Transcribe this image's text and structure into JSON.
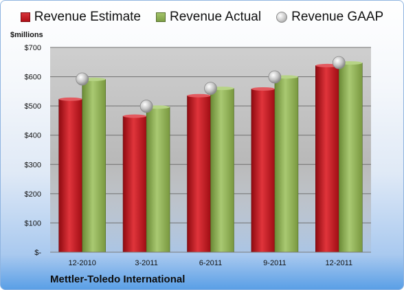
{
  "chart_data": {
    "type": "bar",
    "ylabel": "$millions",
    "company": "Mettler-Toledo International",
    "categories": [
      "12-2010",
      "3-2011",
      "6-2011",
      "9-2011",
      "12-2011"
    ],
    "series": [
      {
        "name": "Revenue Estimate",
        "kind": "bar",
        "color": "#c0141c",
        "values": [
          523,
          465,
          535,
          558,
          638
        ]
      },
      {
        "name": "Revenue Actual",
        "kind": "bar",
        "color": "#8db050",
        "values": [
          591,
          496,
          560,
          599,
          647
        ]
      },
      {
        "name": "Revenue GAAP",
        "kind": "marker",
        "color": "#bdbdbd",
        "values": [
          592,
          499,
          560,
          599,
          648
        ]
      }
    ],
    "ylim": [
      0,
      700
    ],
    "yticks": [
      0,
      100,
      200,
      300,
      400,
      500,
      600,
      700
    ],
    "ytick_labels": [
      "$-",
      "$100",
      "$200",
      "$300",
      "$400",
      "$500",
      "$600",
      "$700"
    ],
    "grid": true,
    "legend_position": "top"
  }
}
